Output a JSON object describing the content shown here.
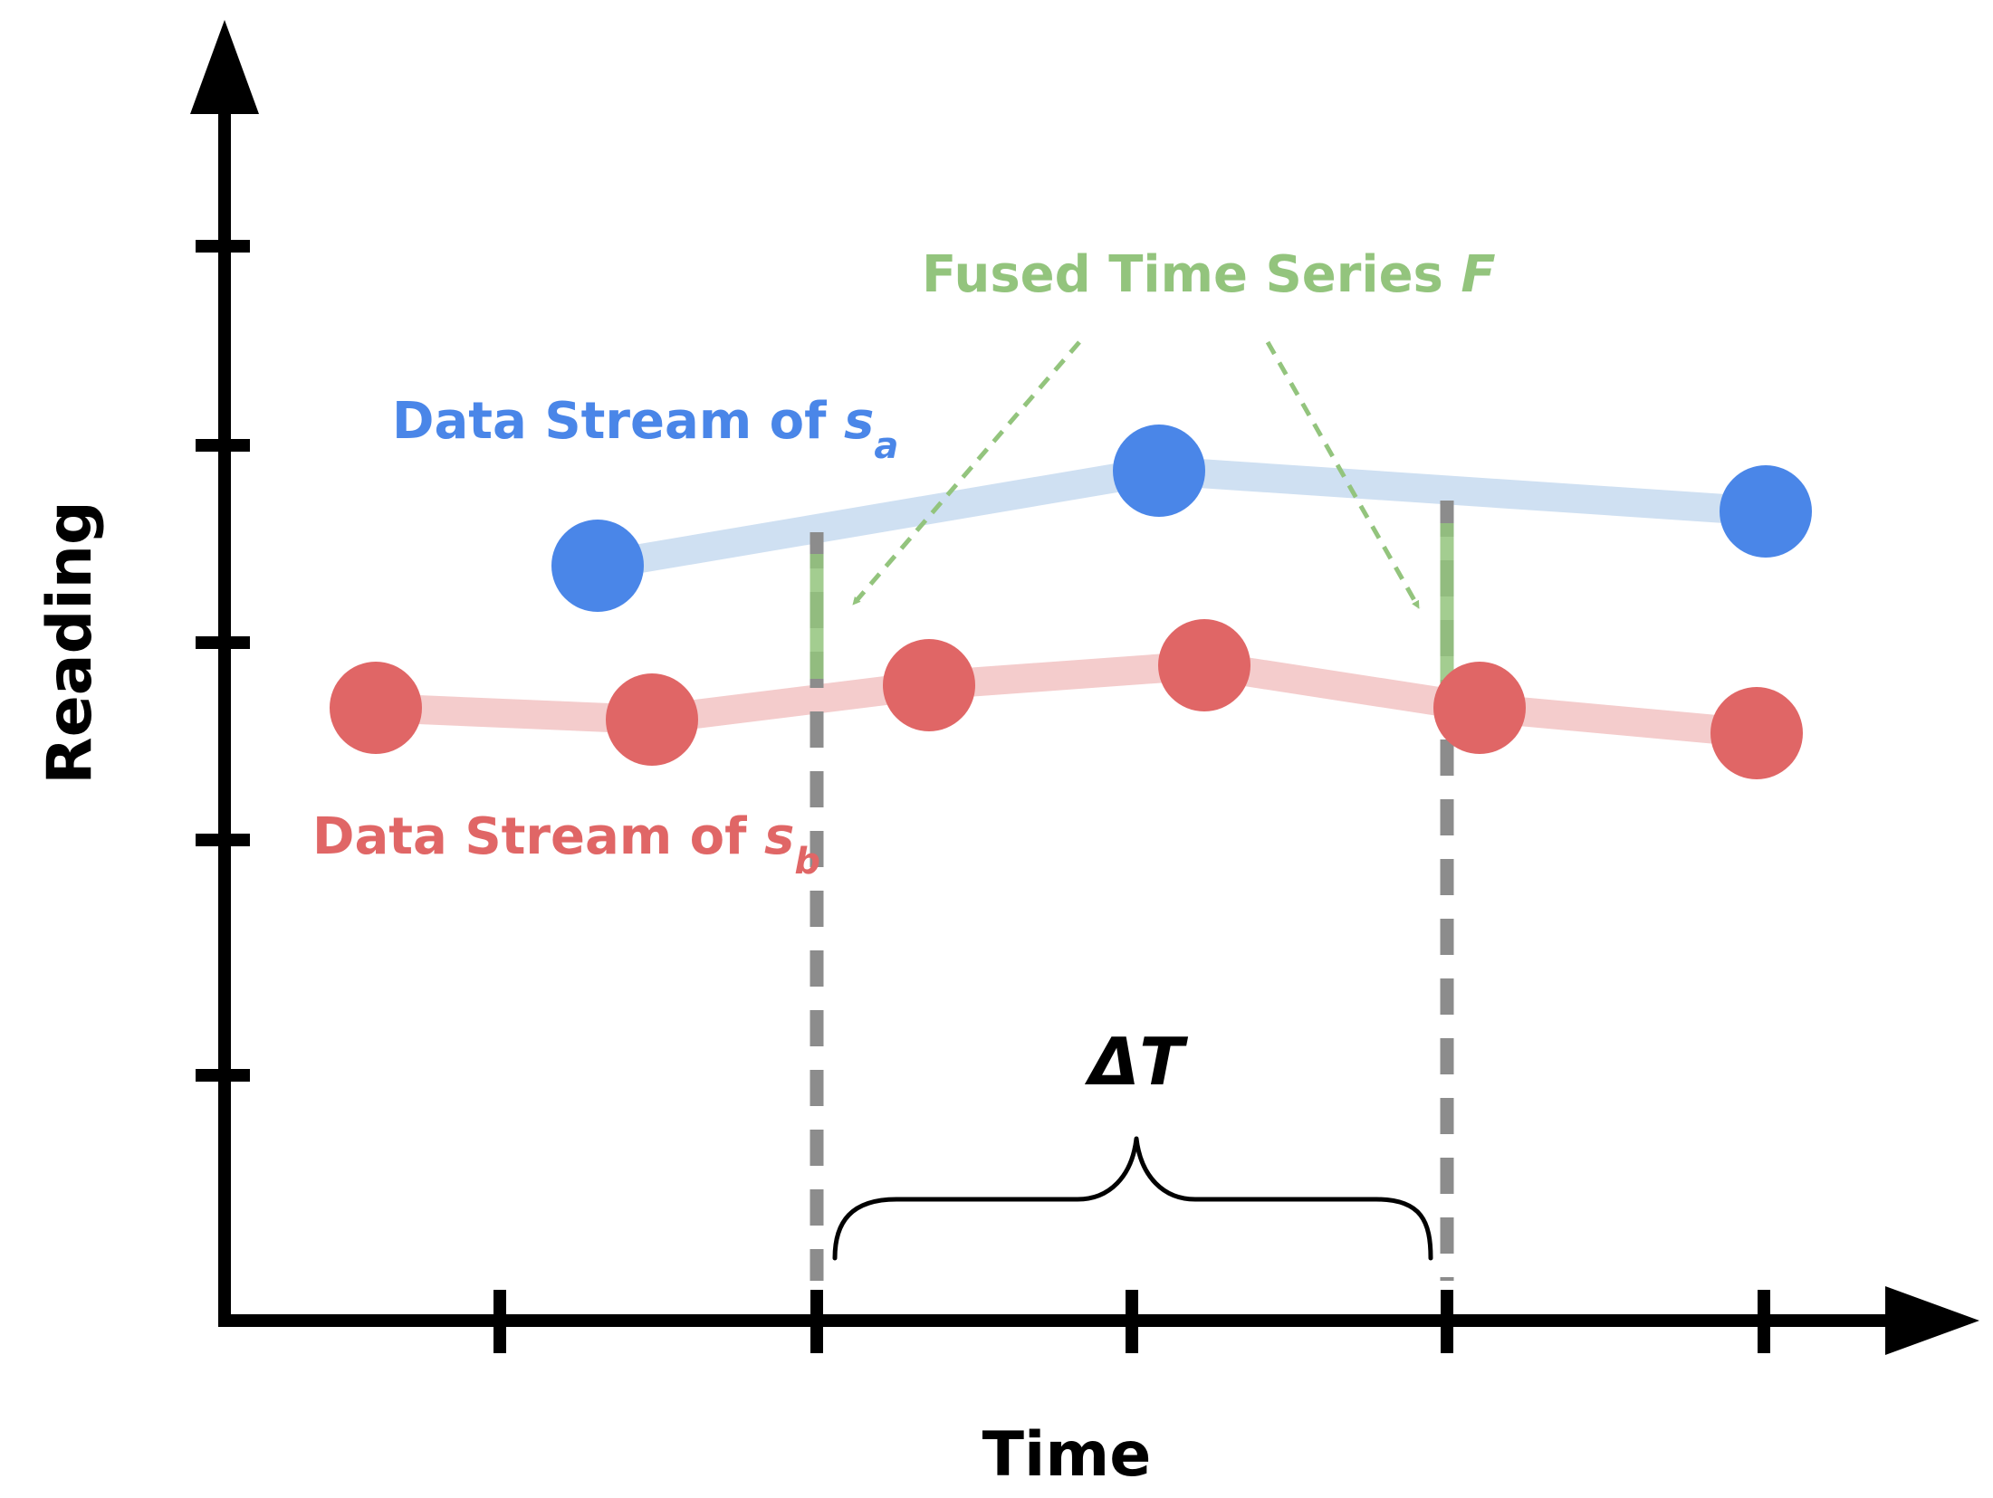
{
  "axes": {
    "x_title": "Time",
    "y_title": "Reading"
  },
  "colors": {
    "stream_a": "#4A86E8",
    "stream_a_line": "#CFE0F2",
    "stream_b": "#E06666",
    "stream_b_line": "#F4CCCC",
    "fused": "#93C47D",
    "guide": "#8C8C8C",
    "axis": "#000000"
  },
  "stream_a": {
    "label_prefix": "Data Stream of ",
    "label_var": "s",
    "label_sub": "a"
  },
  "stream_b": {
    "label_prefix": "Data Stream of ",
    "label_var": "s",
    "label_sub": "b"
  },
  "fused": {
    "label_prefix": "Fused Time Series ",
    "label_var": "F"
  },
  "interval": {
    "label": "ΔT"
  }
}
